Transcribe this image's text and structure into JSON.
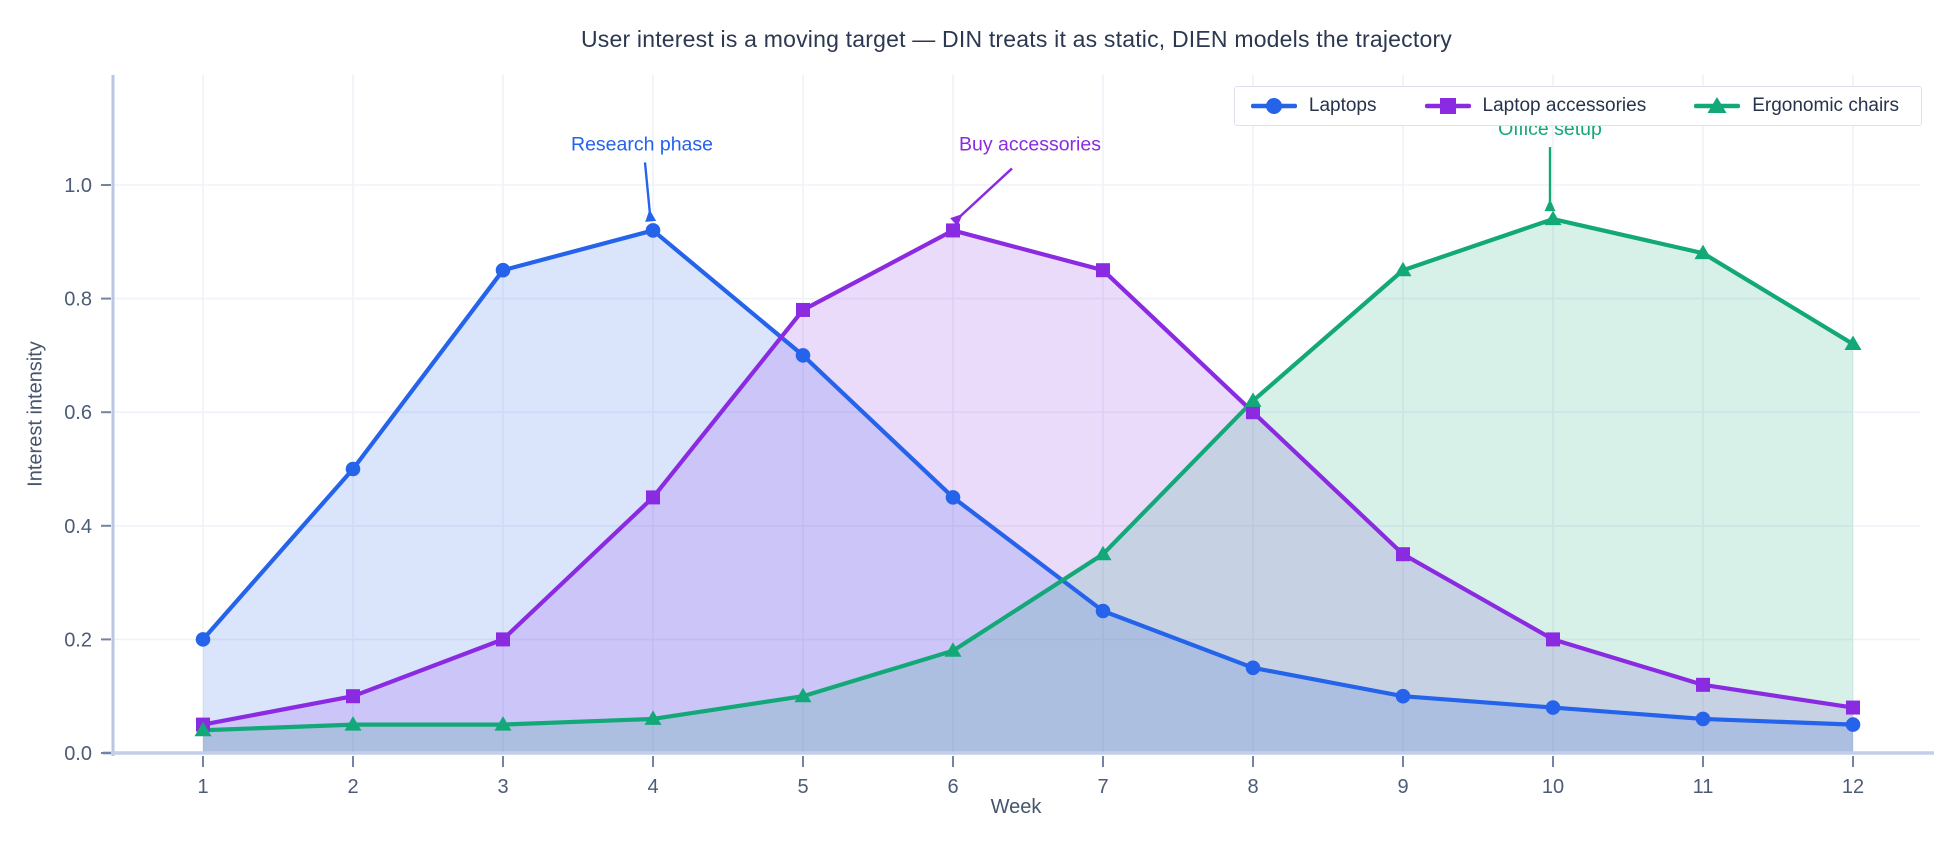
{
  "title": "User interest is a moving target — DIN treats it as static, DIEN models the trajectory",
  "chart_data": {
    "type": "line",
    "x": [
      1,
      2,
      3,
      4,
      5,
      6,
      7,
      8,
      9,
      10,
      11,
      12
    ],
    "xlabel": "Week",
    "ylabel": "Interest intensity",
    "yticks": [
      "0.0",
      "0.2",
      "0.4",
      "0.6",
      "0.8",
      "1.0"
    ],
    "ylim": [
      0.0,
      1.19
    ],
    "grid": true,
    "legend_position": "top-right",
    "fill_to_zero": true,
    "series": [
      {
        "name": "Laptops",
        "color": "#2563eb",
        "marker": "circle",
        "values": [
          0.2,
          0.5,
          0.85,
          0.92,
          0.7,
          0.45,
          0.25,
          0.15,
          0.1,
          0.08,
          0.06,
          0.05
        ]
      },
      {
        "name": "Laptop accessories",
        "color": "#8a2be2",
        "marker": "square",
        "values": [
          0.05,
          0.1,
          0.2,
          0.45,
          0.78,
          0.92,
          0.85,
          0.6,
          0.35,
          0.2,
          0.12,
          0.08
        ]
      },
      {
        "name": "Ergonomic chairs",
        "color": "#13a878",
        "marker": "triangle",
        "values": [
          0.04,
          0.05,
          0.05,
          0.06,
          0.1,
          0.18,
          0.35,
          0.62,
          0.85,
          0.94,
          0.88,
          0.72
        ]
      }
    ],
    "annotations": [
      {
        "text": "Research phase",
        "color": "#2563eb",
        "week": 4,
        "value": 0.92
      },
      {
        "text": "Buy accessories",
        "color": "#8a2be2",
        "week": 6,
        "value": 0.92
      },
      {
        "text": "Office setup",
        "color": "#13a878",
        "week": 10,
        "value": 0.94
      }
    ],
    "colors": {
      "grid": "#f0f2f9",
      "spine_left": "#b9c6e4",
      "spine_bottom": "#c3cfe9",
      "tick_mark": "#74839f",
      "tick_label": "#4c5c77",
      "title_text": "#2b3850"
    }
  }
}
